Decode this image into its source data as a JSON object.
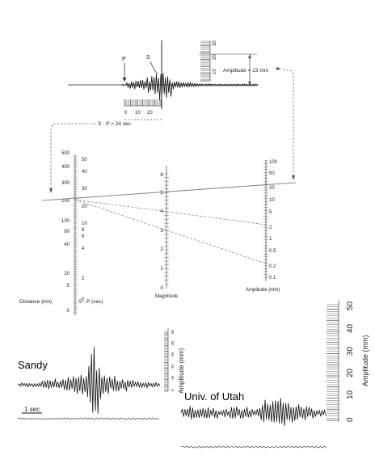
{
  "seismogram": {
    "p_label": "P",
    "s_label": "S",
    "amplitude_label": "Amplitude = 23 mm",
    "sp_label": "S - P = 24 sec",
    "time_ticks": [
      "0",
      "10",
      "20"
    ],
    "amp_ticks": [
      "10",
      "20",
      "30"
    ]
  },
  "nomogram": {
    "distance_ticks": [
      "500",
      "400",
      "300",
      "200",
      "100",
      "60",
      "40",
      "20",
      "5",
      "0"
    ],
    "sp_ticks": [
      "50",
      "40",
      "30",
      "20",
      "10",
      "8",
      "6",
      "4",
      "2",
      "0"
    ],
    "magnitude_ticks": [
      "6",
      "5",
      "4",
      "3",
      "2",
      "1",
      "0"
    ],
    "amplitude_ticks": [
      "100",
      "50",
      "20",
      "10",
      "5",
      "2",
      "1",
      "0.5",
      "0.2",
      "0.1"
    ],
    "distance_title": "Distance (km)",
    "sp_title": "S - P (sec)",
    "magnitude_title": "Magnitude",
    "amplitude_title": "Amplitude (mm)"
  },
  "sandy": {
    "label": "Sandy",
    "scale_label": "1 sec",
    "axis_title": "Amplitude (mm)",
    "ticks": [
      "0",
      "10",
      "20",
      "30",
      "40",
      "50"
    ]
  },
  "utah": {
    "label": "Univ. of Utah",
    "axis_title": "Amplitude (mm)",
    "ticks": [
      "0",
      "10",
      "20",
      "30",
      "40",
      "50"
    ]
  }
}
